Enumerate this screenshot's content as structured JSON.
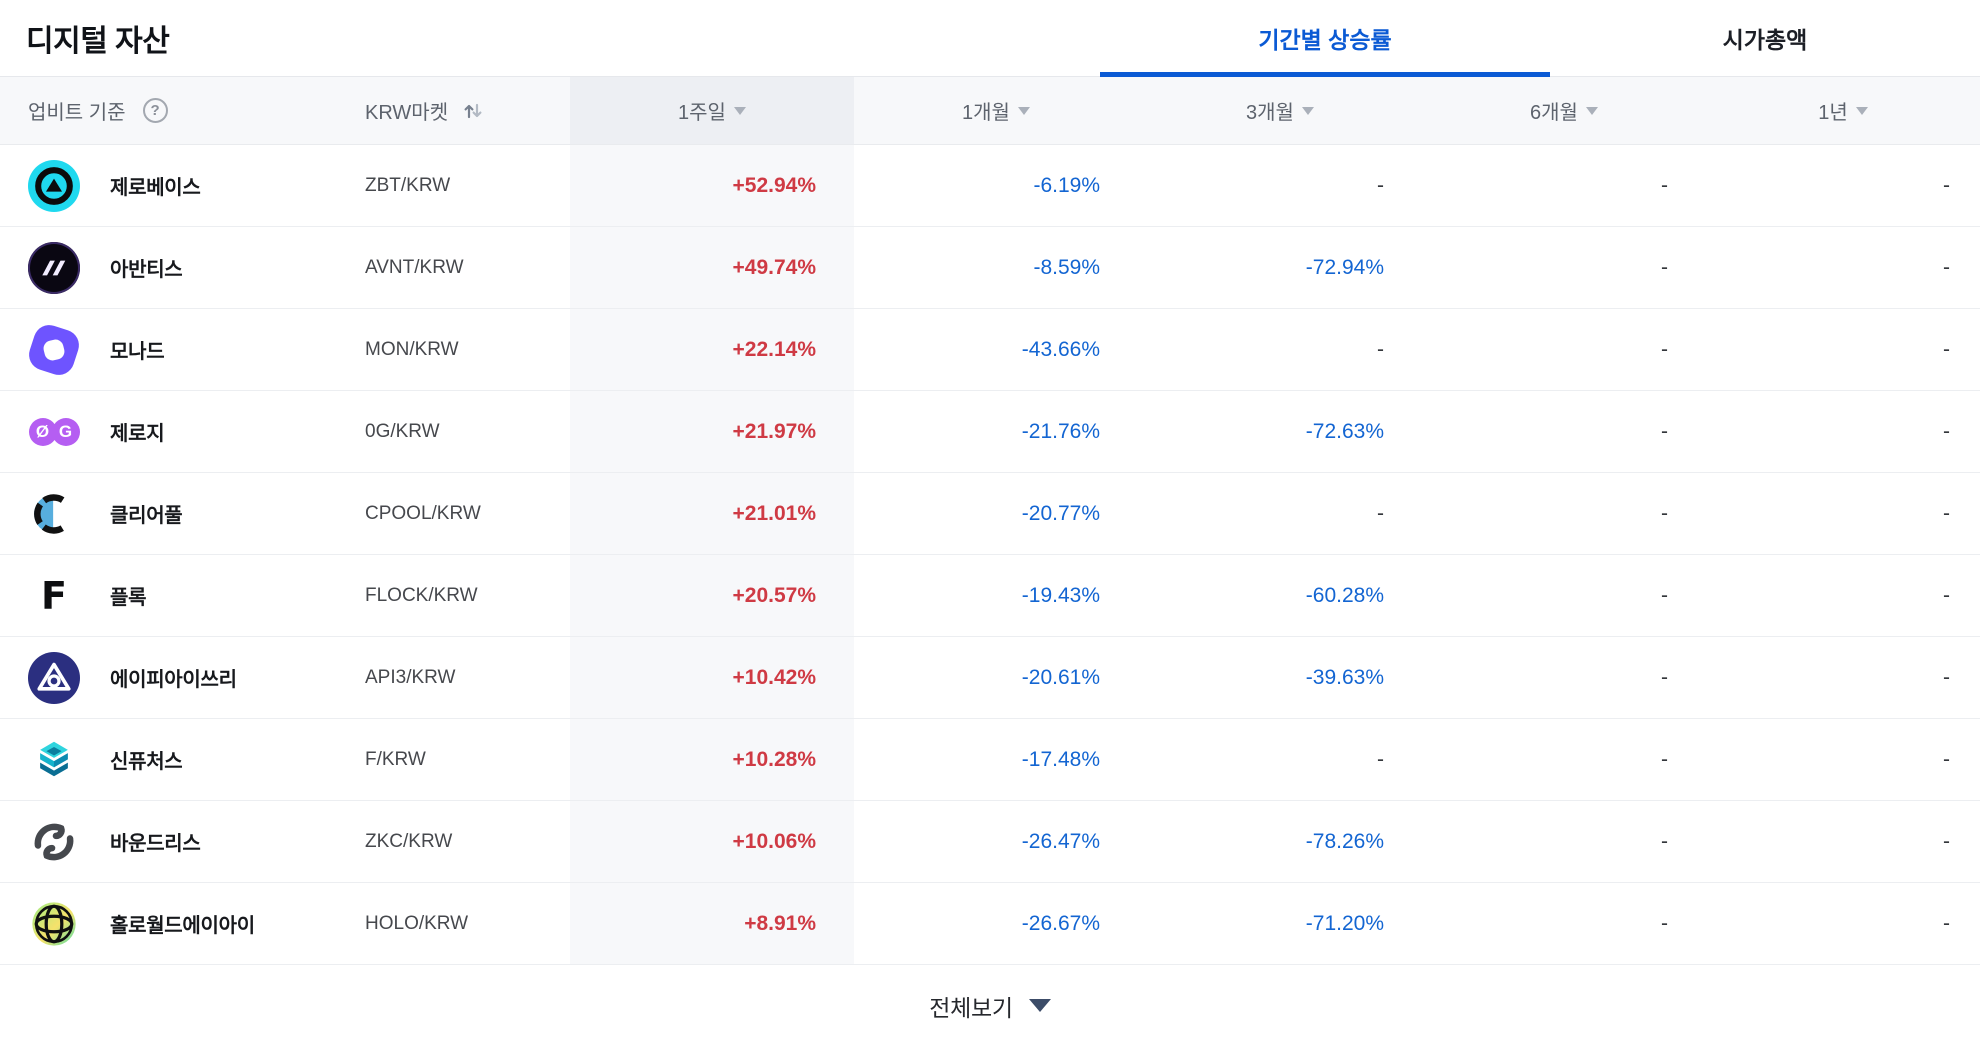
{
  "page": {
    "title": "디지털 자산",
    "tabs": [
      {
        "label": "기간별 상승률",
        "active": true
      },
      {
        "label": "시가총액",
        "active": false
      }
    ],
    "table": {
      "source_label": "업비트 기준",
      "help_glyph": "?",
      "market_header": "KRW마켓",
      "period_columns": [
        {
          "label": "1주일",
          "highlighted": true
        },
        {
          "label": "1개월",
          "highlighted": false
        },
        {
          "label": "3개월",
          "highlighted": false
        },
        {
          "label": "6개월",
          "highlighted": false
        },
        {
          "label": "1년",
          "highlighted": false
        }
      ],
      "rows": [
        {
          "name": "제로베이스",
          "pair": "ZBT/KRW",
          "icon": "zerobase",
          "periods": [
            "+52.94%",
            "-6.19%",
            "-",
            "-",
            "-"
          ]
        },
        {
          "name": "아반티스",
          "pair": "AVNT/KRW",
          "icon": "avantis",
          "periods": [
            "+49.74%",
            "-8.59%",
            "-72.94%",
            "-",
            "-"
          ]
        },
        {
          "name": "모나드",
          "pair": "MON/KRW",
          "icon": "monad",
          "periods": [
            "+22.14%",
            "-43.66%",
            "-",
            "-",
            "-"
          ]
        },
        {
          "name": "제로지",
          "pair": "0G/KRW",
          "icon": "zerog",
          "periods": [
            "+21.97%",
            "-21.76%",
            "-72.63%",
            "-",
            "-"
          ]
        },
        {
          "name": "클리어풀",
          "pair": "CPOOL/KRW",
          "icon": "clearpool",
          "periods": [
            "+21.01%",
            "-20.77%",
            "-",
            "-",
            "-"
          ]
        },
        {
          "name": "플록",
          "pair": "FLOCK/KRW",
          "icon": "flock",
          "periods": [
            "+20.57%",
            "-19.43%",
            "-60.28%",
            "-",
            "-"
          ]
        },
        {
          "name": "에이피아이쓰리",
          "pair": "API3/KRW",
          "icon": "api3",
          "periods": [
            "+10.42%",
            "-20.61%",
            "-39.63%",
            "-",
            "-"
          ]
        },
        {
          "name": "신퓨처스",
          "pair": "F/KRW",
          "icon": "synfutures",
          "periods": [
            "+10.28%",
            "-17.48%",
            "-",
            "-",
            "-"
          ]
        },
        {
          "name": "바운드리스",
          "pair": "ZKC/KRW",
          "icon": "boundless",
          "periods": [
            "+10.06%",
            "-26.47%",
            "-78.26%",
            "-",
            "-"
          ]
        },
        {
          "name": "홀로월드에이아이",
          "pair": "HOLO/KRW",
          "icon": "holoworld",
          "periods": [
            "+8.91%",
            "-26.67%",
            "-71.20%",
            "-",
            "-"
          ]
        }
      ]
    },
    "footer": {
      "label": "전체보기"
    }
  },
  "colors": {
    "tab_active_blue": "#0b5ad4",
    "rise_red": "#cf3a44",
    "fall_blue": "#1365d2",
    "header_bg": "#f7f8fa",
    "highlight_col_bg": "#f7f8fa"
  }
}
